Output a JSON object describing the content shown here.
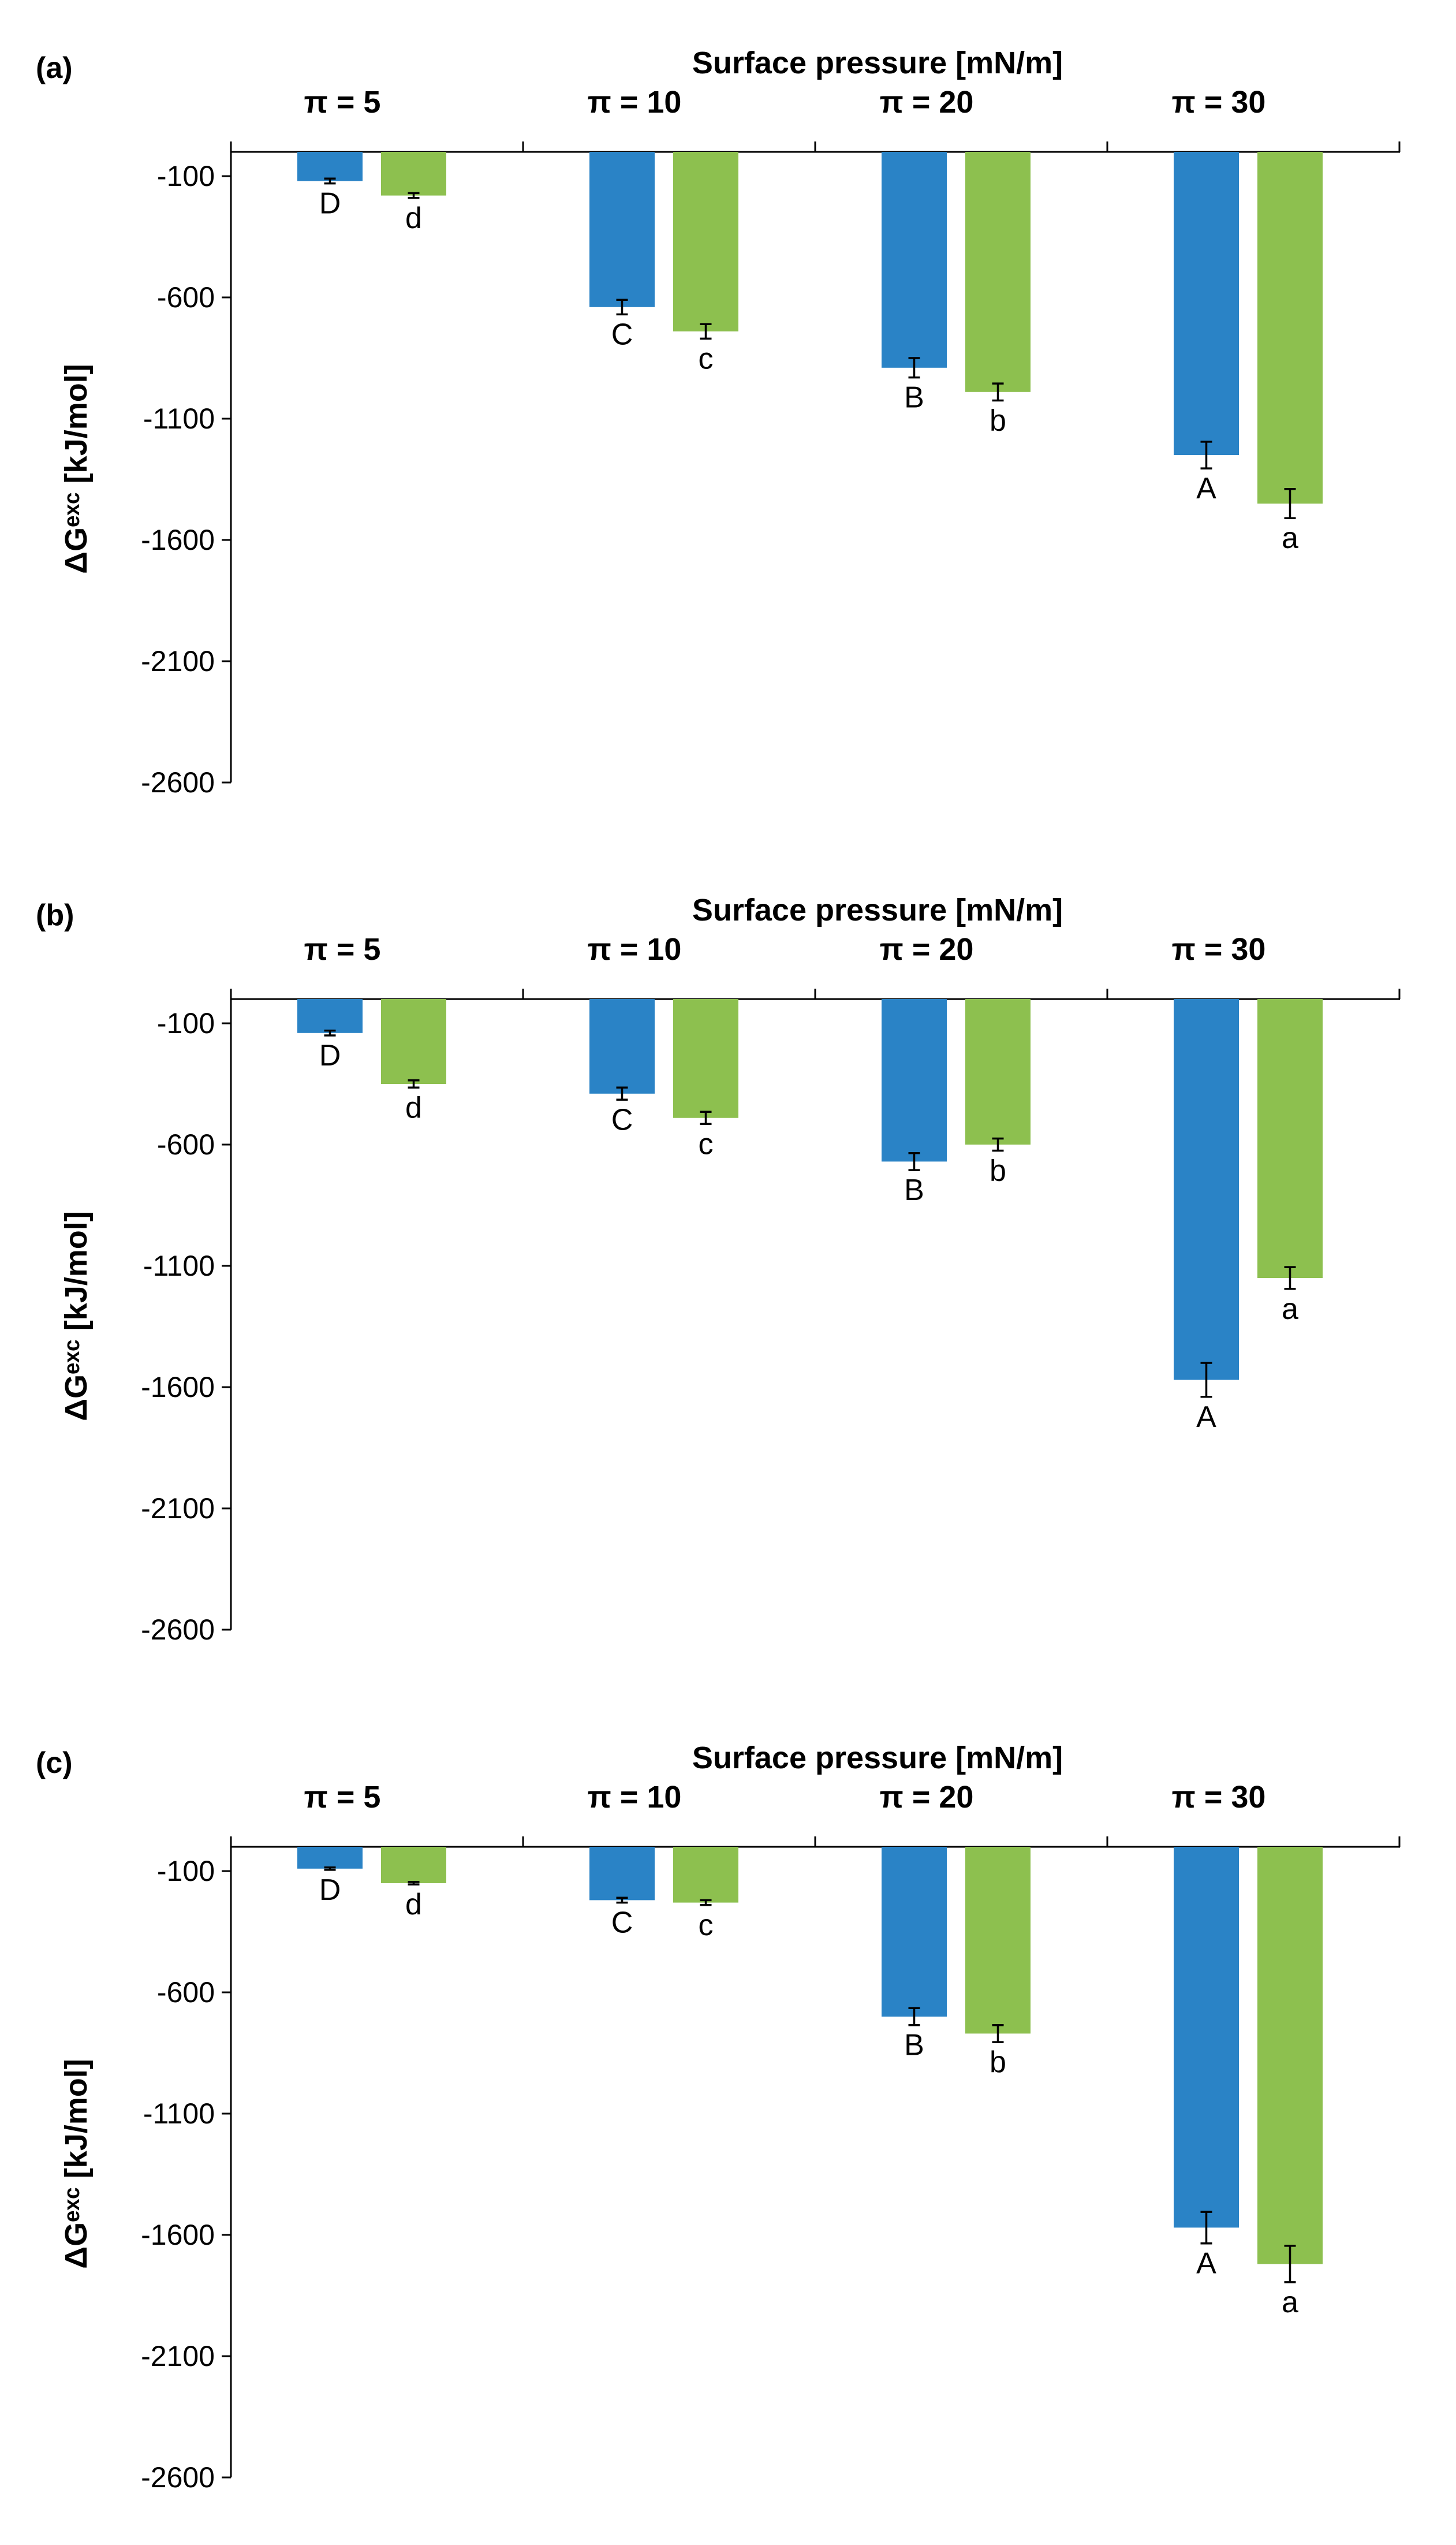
{
  "colors": {
    "blue": "#2a83c6",
    "green": "#8dc04f"
  },
  "chart_data": [
    {
      "type": "bar",
      "panel_label": "(a)",
      "xlabel": "Surface pressure [mN/m]",
      "ylabel": "ΔGᵉˣᶜ [kJ/mol]",
      "categories": [
        "π = 5",
        "π = 10",
        "π = 20",
        "π = 30"
      ],
      "ylim": [
        -2600,
        0
      ],
      "yticks": [
        -100,
        -600,
        -1100,
        -1600,
        -2100,
        -2600
      ],
      "legend": "none",
      "series": [
        {
          "color": "blue",
          "values": [
            -120,
            -640,
            -890,
            -1250
          ],
          "errors": [
            10,
            30,
            40,
            55
          ],
          "letters": [
            "D",
            "C",
            "B",
            "A"
          ]
        },
        {
          "color": "green",
          "values": [
            -180,
            -740,
            -990,
            -1450
          ],
          "errors": [
            10,
            30,
            35,
            60
          ],
          "letters": [
            "d",
            "c",
            "b",
            "a"
          ]
        }
      ]
    },
    {
      "type": "bar",
      "panel_label": "(b)",
      "xlabel": "Surface pressure [mN/m]",
      "ylabel": "ΔGᵉˣᶜ [kJ/mol]",
      "categories": [
        "π = 5",
        "π = 10",
        "π = 20",
        "π = 30"
      ],
      "ylim": [
        -2600,
        0
      ],
      "yticks": [
        -100,
        -600,
        -1100,
        -1600,
        -2100,
        -2600
      ],
      "legend": "none",
      "series": [
        {
          "color": "blue",
          "values": [
            -140,
            -390,
            -670,
            -1570
          ],
          "errors": [
            10,
            25,
            35,
            70
          ],
          "letters": [
            "D",
            "C",
            "B",
            "A"
          ]
        },
        {
          "color": "green",
          "values": [
            -350,
            -490,
            -600,
            -1150
          ],
          "errors": [
            15,
            25,
            25,
            45
          ],
          "letters": [
            "d",
            "c",
            "b",
            "a"
          ]
        }
      ]
    },
    {
      "type": "bar",
      "panel_label": "(c)",
      "xlabel": "Surface pressure [mN/m]",
      "ylabel": "ΔGᵉˣᶜ [kJ/mol]",
      "categories": [
        "π = 5",
        "π = 10",
        "π = 20",
        "π = 30"
      ],
      "ylim": [
        -2600,
        0
      ],
      "yticks": [
        -100,
        -600,
        -1100,
        -1600,
        -2100,
        -2600
      ],
      "legend": "none",
      "series": [
        {
          "color": "blue",
          "values": [
            -90,
            -220,
            -700,
            -1570
          ],
          "errors": [
            5,
            10,
            35,
            65
          ],
          "letters": [
            "D",
            "C",
            "B",
            "A"
          ]
        },
        {
          "color": "green",
          "values": [
            -150,
            -230,
            -770,
            -1720
          ],
          "errors": [
            5,
            10,
            35,
            75
          ],
          "letters": [
            "d",
            "c",
            "b",
            "a"
          ]
        }
      ]
    }
  ]
}
